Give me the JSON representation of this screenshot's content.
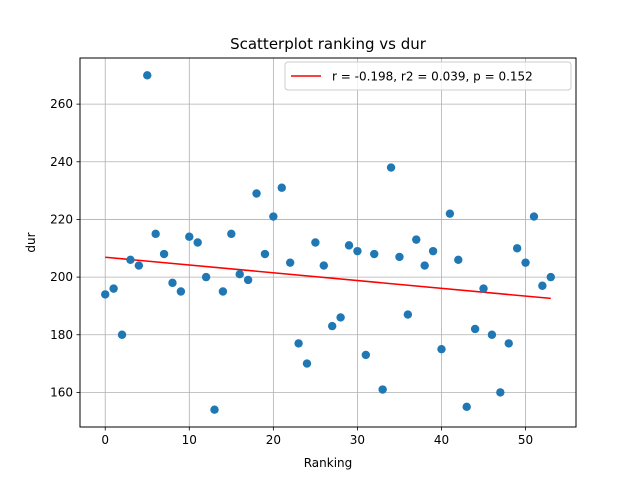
{
  "chart_data": {
    "type": "scatter",
    "title": "Scatterplot ranking vs dur",
    "xlabel": "Ranking",
    "ylabel": "dur",
    "xlim": [
      -3,
      56
    ],
    "ylim": [
      148,
      276
    ],
    "x_ticks": [
      0,
      10,
      20,
      30,
      40,
      50
    ],
    "y_ticks": [
      160,
      180,
      200,
      220,
      240,
      260
    ],
    "grid": true,
    "legend_position": "top-right",
    "legend_label": "r = -0.198, r2 = 0.039, p = 0.152",
    "point_color": "#1f77b4",
    "fit_color": "#ff0000",
    "points": [
      [
        0,
        194
      ],
      [
        1,
        196
      ],
      [
        2,
        180
      ],
      [
        3,
        206
      ],
      [
        4,
        204
      ],
      [
        5,
        270
      ],
      [
        6,
        215
      ],
      [
        7,
        208
      ],
      [
        8,
        198
      ],
      [
        9,
        195
      ],
      [
        10,
        214
      ],
      [
        11,
        212
      ],
      [
        12,
        200
      ],
      [
        13,
        154
      ],
      [
        14,
        195
      ],
      [
        15,
        215
      ],
      [
        16,
        201
      ],
      [
        17,
        199
      ],
      [
        18,
        229
      ],
      [
        19,
        208
      ],
      [
        20,
        221
      ],
      [
        21,
        231
      ],
      [
        22,
        205
      ],
      [
        23,
        177
      ],
      [
        24,
        170
      ],
      [
        25,
        212
      ],
      [
        26,
        204
      ],
      [
        27,
        183
      ],
      [
        28,
        186
      ],
      [
        29,
        211
      ],
      [
        30,
        209
      ],
      [
        31,
        173
      ],
      [
        32,
        208
      ],
      [
        33,
        161
      ],
      [
        34,
        238
      ],
      [
        35,
        207
      ],
      [
        36,
        187
      ],
      [
        37,
        213
      ],
      [
        38,
        204
      ],
      [
        39,
        209
      ],
      [
        40,
        175
      ],
      [
        41,
        222
      ],
      [
        42,
        206
      ],
      [
        43,
        155
      ],
      [
        44,
        182
      ],
      [
        45,
        196
      ],
      [
        46,
        180
      ],
      [
        47,
        160
      ],
      [
        48,
        177
      ],
      [
        49,
        210
      ],
      [
        50,
        205
      ],
      [
        51,
        221
      ],
      [
        52,
        197
      ],
      [
        53,
        200
      ]
    ],
    "fit_line": {
      "x": [
        0,
        53
      ],
      "y": [
        206.9,
        192.6
      ]
    }
  }
}
